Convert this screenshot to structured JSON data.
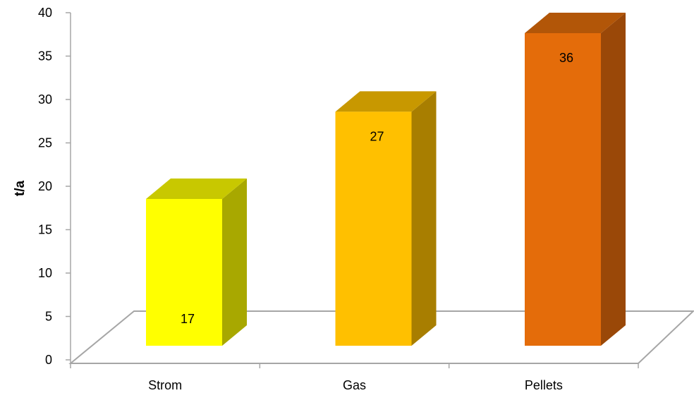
{
  "chart_data": {
    "type": "bar",
    "categories": [
      "Strom",
      "Gas",
      "Pellets"
    ],
    "values": [
      17,
      27,
      36
    ],
    "data_labels": [
      "17",
      "27",
      "36"
    ],
    "title": "",
    "xlabel": "",
    "ylabel": "t/a",
    "ylim": [
      0,
      40
    ],
    "yticks": [
      "0",
      "5",
      "10",
      "15",
      "20",
      "25",
      "30",
      "35",
      "40"
    ],
    "grid": false,
    "legend": "none",
    "three_d": true,
    "colors": [
      {
        "front": "#FFFF00",
        "side": "#A8A800",
        "top": "#C8C800"
      },
      {
        "front": "#FFC000",
        "side": "#A87E00",
        "top": "#C89800"
      },
      {
        "front": "#E46C0A",
        "side": "#9A4808",
        "top": "#B25608"
      }
    ]
  }
}
